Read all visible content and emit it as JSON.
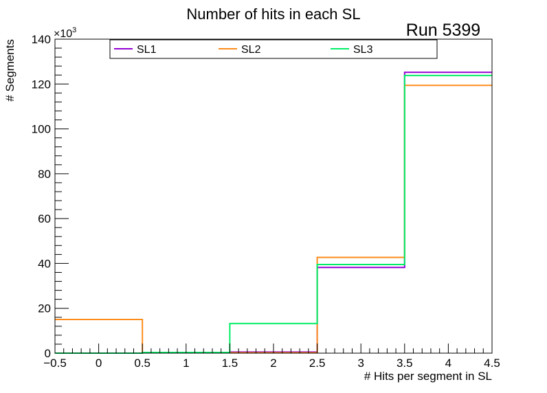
{
  "chart_data": {
    "type": "step-histogram",
    "title": "Number of hits in each SL",
    "annotation": "Run 5399",
    "xlabel": "# Hits per segment in SL",
    "ylabel": "# Segments",
    "y_multiplier": "×10",
    "y_multiplier_exponent": "3",
    "xlim": [
      -0.5,
      4.5
    ],
    "ylim": [
      0,
      140
    ],
    "x_ticks": [
      -0.5,
      0,
      0.5,
      1,
      1.5,
      2,
      2.5,
      3,
      3.5,
      4,
      4.5
    ],
    "x_tick_labels": [
      "−0.5",
      "0",
      "0.5",
      "1",
      "1.5",
      "2",
      "2.5",
      "3",
      "3.5",
      "4",
      "4.5"
    ],
    "y_ticks": [
      0,
      20,
      40,
      60,
      80,
      100,
      120,
      140
    ],
    "y_tick_labels": [
      "0",
      "20",
      "40",
      "60",
      "80",
      "100",
      "120",
      "140"
    ],
    "bin_edges": [
      -0.5,
      0.5,
      1.5,
      2.5,
      3.5,
      4.5
    ],
    "legend_position": "top",
    "series": [
      {
        "name": "SL1",
        "color": "#9400d3",
        "values": [
          0,
          0.3,
          0.5,
          38.2,
          125.2
        ]
      },
      {
        "name": "SL2",
        "color": "#ff8c1a",
        "values": [
          15.0,
          0.3,
          0.2,
          42.7,
          119.4
        ]
      },
      {
        "name": "SL3",
        "color": "#00ee66",
        "values": [
          0,
          0.3,
          13.2,
          39.5,
          123.8
        ]
      }
    ]
  }
}
